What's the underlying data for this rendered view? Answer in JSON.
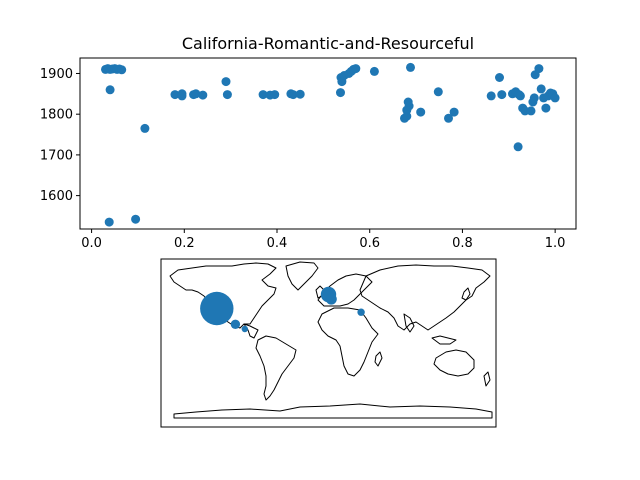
{
  "chart_data": [
    {
      "type": "scatter",
      "title": "California-Romantic-and-Resourceful",
      "xlabel": "",
      "ylabel": "",
      "xlim": [
        -0.025,
        1.045
      ],
      "ylim": [
        1518,
        1938
      ],
      "xticks": [
        0.0,
        0.2,
        0.4,
        0.6,
        0.8,
        1.0
      ],
      "xtick_labels": [
        "0.0",
        "0.2",
        "0.4",
        "0.6",
        "0.8",
        "1.0"
      ],
      "yticks": [
        1600,
        1700,
        1800,
        1900
      ],
      "ytick_labels": [
        "1600",
        "1700",
        "1800",
        "1900"
      ],
      "grid": false,
      "marker_color": "#1f77b4",
      "points": [
        {
          "x": 0.03,
          "y": 1910
        },
        {
          "x": 0.035,
          "y": 1912
        },
        {
          "x": 0.04,
          "y": 1910
        },
        {
          "x": 0.045,
          "y": 1911
        },
        {
          "x": 0.05,
          "y": 1912
        },
        {
          "x": 0.055,
          "y": 1910
        },
        {
          "x": 0.06,
          "y": 1911
        },
        {
          "x": 0.065,
          "y": 1909
        },
        {
          "x": 0.04,
          "y": 1860
        },
        {
          "x": 0.038,
          "y": 1535
        },
        {
          "x": 0.095,
          "y": 1542
        },
        {
          "x": 0.115,
          "y": 1765
        },
        {
          "x": 0.18,
          "y": 1848
        },
        {
          "x": 0.195,
          "y": 1850
        },
        {
          "x": 0.195,
          "y": 1845
        },
        {
          "x": 0.22,
          "y": 1848
        },
        {
          "x": 0.225,
          "y": 1850
        },
        {
          "x": 0.24,
          "y": 1847
        },
        {
          "x": 0.29,
          "y": 1880
        },
        {
          "x": 0.293,
          "y": 1848
        },
        {
          "x": 0.37,
          "y": 1848
        },
        {
          "x": 0.385,
          "y": 1847
        },
        {
          "x": 0.395,
          "y": 1848
        },
        {
          "x": 0.43,
          "y": 1850
        },
        {
          "x": 0.435,
          "y": 1848
        },
        {
          "x": 0.45,
          "y": 1849
        },
        {
          "x": 0.537,
          "y": 1853
        },
        {
          "x": 0.538,
          "y": 1890
        },
        {
          "x": 0.54,
          "y": 1880
        },
        {
          "x": 0.545,
          "y": 1895
        },
        {
          "x": 0.555,
          "y": 1900
        },
        {
          "x": 0.56,
          "y": 1905
        },
        {
          "x": 0.565,
          "y": 1910
        },
        {
          "x": 0.57,
          "y": 1912
        },
        {
          "x": 0.61,
          "y": 1905
        },
        {
          "x": 0.675,
          "y": 1790
        },
        {
          "x": 0.68,
          "y": 1795
        },
        {
          "x": 0.68,
          "y": 1810
        },
        {
          "x": 0.685,
          "y": 1820
        },
        {
          "x": 0.683,
          "y": 1830
        },
        {
          "x": 0.688,
          "y": 1915
        },
        {
          "x": 0.71,
          "y": 1805
        },
        {
          "x": 0.748,
          "y": 1855
        },
        {
          "x": 0.77,
          "y": 1790
        },
        {
          "x": 0.782,
          "y": 1805
        },
        {
          "x": 0.862,
          "y": 1845
        },
        {
          "x": 0.88,
          "y": 1890
        },
        {
          "x": 0.885,
          "y": 1848
        },
        {
          "x": 0.908,
          "y": 1850
        },
        {
          "x": 0.915,
          "y": 1855
        },
        {
          "x": 0.92,
          "y": 1720
        },
        {
          "x": 0.922,
          "y": 1848
        },
        {
          "x": 0.925,
          "y": 1845
        },
        {
          "x": 0.93,
          "y": 1815
        },
        {
          "x": 0.935,
          "y": 1808
        },
        {
          "x": 0.948,
          "y": 1808
        },
        {
          "x": 0.952,
          "y": 1830
        },
        {
          "x": 0.955,
          "y": 1840
        },
        {
          "x": 0.957,
          "y": 1897
        },
        {
          "x": 0.965,
          "y": 1912
        },
        {
          "x": 0.97,
          "y": 1862
        },
        {
          "x": 0.975,
          "y": 1840
        },
        {
          "x": 0.98,
          "y": 1815
        },
        {
          "x": 0.985,
          "y": 1845
        },
        {
          "x": 0.99,
          "y": 1852
        },
        {
          "x": 0.995,
          "y": 1850
        },
        {
          "x": 1.0,
          "y": 1840
        }
      ]
    },
    {
      "type": "scatter",
      "subtype": "map",
      "title": "",
      "projection": "equirectangular",
      "lon_range": [
        -180,
        180
      ],
      "lat_range": [
        -90,
        90
      ],
      "marker_color": "#1f77b4",
      "land_stroke": "#000000",
      "points": [
        {
          "lon": -120,
          "lat": 37,
          "size": 1120
        },
        {
          "lon": -100,
          "lat": 20,
          "size": 90
        },
        {
          "lon": -90,
          "lat": 15,
          "size": 40
        },
        {
          "lon": 0,
          "lat": 52,
          "size": 240
        },
        {
          "lon": 3,
          "lat": 47,
          "size": 120
        },
        {
          "lon": 35,
          "lat": 33,
          "size": 55
        }
      ]
    }
  ]
}
